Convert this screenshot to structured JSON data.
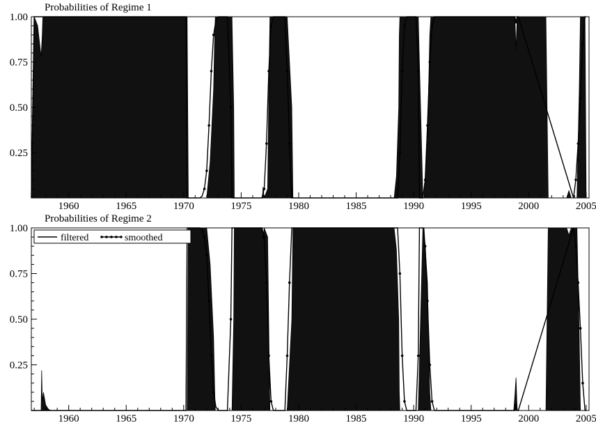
{
  "chart_data": [
    {
      "type": "area",
      "title": "Probabilities of Regime 1",
      "xlabel": "",
      "ylabel": "",
      "xlim": [
        1956.75,
        2005.25
      ],
      "ylim": [
        0,
        1.0
      ],
      "x_ticks": [
        1960,
        1965,
        1970,
        1975,
        1980,
        1985,
        1990,
        1995,
        2000,
        2005
      ],
      "x_tick_labels": [
        "1960",
        "1965",
        "1970",
        "1975",
        "1980",
        "1985",
        "1990",
        "1995",
        "2000",
        "2005"
      ],
      "y_ticks": [
        0.25,
        0.5,
        0.75,
        1.0
      ],
      "y_tick_labels": [
        "0.25",
        "0.50",
        "0.75",
        "1.00"
      ],
      "grid": false,
      "series": [
        {
          "name": "filtered",
          "style": "solid",
          "x": [
            1956.75,
            1957.0,
            1957.3,
            1957.6,
            1957.7,
            1957.75,
            1957.85,
            1958.1,
            1970.3,
            1970.4,
            1972.0,
            1972.3,
            1972.6,
            1972.7,
            1972.75,
            1973.5,
            1973.6,
            1973.8,
            1974.2,
            1974.35,
            1974.4,
            1976.85,
            1976.9,
            1977.0,
            1977.3,
            1977.45,
            1977.5,
            1979.0,
            1979.4,
            1979.5,
            1988.3,
            1988.5,
            1988.7,
            1988.75,
            1988.8,
            1989.5,
            1990.4,
            1990.8,
            1990.9,
            1991.2,
            1991.4,
            1991.5,
            1998.8,
            1998.9,
            1999.0,
            1999.1,
            2001.5,
            2001.7,
            2003.3,
            2003.5,
            2003.7,
            2004.2,
            2004.4,
            2004.5,
            2004.9,
            2005.0
          ],
          "values": [
            0.0,
            1.0,
            0.95,
            0.78,
            0.9,
            1.0,
            1.0,
            1.0,
            1.0,
            0.0,
            0.0,
            0.2,
            0.6,
            0.9,
            1.0,
            1.0,
            1.0,
            1.0,
            1.0,
            0.5,
            0.0,
            0.0,
            0.06,
            0.0,
            0.05,
            0.8,
            1.0,
            1.0,
            0.5,
            0.0,
            0.0,
            0.12,
            0.5,
            0.9,
            1.0,
            1.0,
            1.0,
            0.0,
            0.0,
            0.3,
            0.9,
            1.0,
            1.0,
            0.82,
            1.0,
            1.0,
            1.0,
            0.0,
            0.0,
            0.04,
            0.0,
            0.0,
            0.6,
            1.0,
            1.0,
            0.0
          ]
        },
        {
          "name": "smoothed",
          "style": "solid-dot",
          "x": [
            1956.75,
            1957.0,
            1957.4,
            1957.6,
            1957.8,
            1958.0,
            1970.2,
            1970.3,
            1971.4,
            1971.6,
            1971.8,
            1972.0,
            1972.2,
            1972.4,
            1972.6,
            1972.8,
            1973.0,
            1973.6,
            1973.8,
            1974.1,
            1974.2,
            1976.8,
            1977.0,
            1977.2,
            1977.4,
            1977.6,
            1977.8,
            1978.0,
            1978.8,
            1979.0,
            1979.2,
            1979.4,
            1988.6,
            1988.8,
            1989.0,
            1989.2,
            1989.4,
            1989.6,
            1990.0,
            1990.2,
            1990.4,
            1990.5,
            1990.8,
            1991.0,
            1991.2,
            1991.4,
            1991.6,
            1991.8,
            1992.0,
            1998.8,
            1998.9,
            1999.0,
            1999.1,
            2003.9,
            2004.1,
            2004.3,
            2004.5,
            2004.7,
            2004.9,
            2005.0
          ],
          "values": [
            0.0,
            1.0,
            1.0,
            1.0,
            1.0,
            1.0,
            1.0,
            0.0,
            0.0,
            0.01,
            0.05,
            0.15,
            0.4,
            0.7,
            0.9,
            0.98,
            1.0,
            1.0,
            1.0,
            0.5,
            0.0,
            0.0,
            0.05,
            0.3,
            0.7,
            0.95,
            1.0,
            1.0,
            1.0,
            0.7,
            0.3,
            0.0,
            0.0,
            0.25,
            0.7,
            0.95,
            1.0,
            1.0,
            1.0,
            1.0,
            0.7,
            0.0,
            0.0,
            0.1,
            0.4,
            0.75,
            0.95,
            1.0,
            1.0,
            1.0,
            0.97,
            1.0,
            1.0,
            0.0,
            0.1,
            0.3,
            0.55,
            0.85,
            1.0,
            1.0
          ]
        }
      ],
      "annotations": []
    },
    {
      "type": "area",
      "title": "Probabilities of Regime 2",
      "xlabel": "",
      "ylabel": "",
      "xlim": [
        1956.75,
        2005.25
      ],
      "ylim": [
        0,
        1.0
      ],
      "x_ticks": [
        1960,
        1965,
        1970,
        1975,
        1980,
        1985,
        1990,
        1995,
        2000,
        2005
      ],
      "x_tick_labels": [
        "1960",
        "1965",
        "1970",
        "1975",
        "1980",
        "1985",
        "1990",
        "1995",
        "2000",
        "2005"
      ],
      "y_ticks": [
        0.25,
        0.5,
        0.75,
        1.0
      ],
      "y_tick_labels": [
        "0.25",
        "0.50",
        "0.75",
        "1.00"
      ],
      "grid": false,
      "legend": {
        "placement": "top-left",
        "entries": [
          {
            "label": "filtered",
            "style": "solid"
          },
          {
            "label": "smoothed",
            "style": "solid-dot"
          }
        ]
      },
      "series": [
        {
          "name": "filtered",
          "style": "solid",
          "x": [
            1956.75,
            1957.6,
            1957.65,
            1957.7,
            1957.8,
            1958.0,
            1958.2,
            1958.4,
            1970.3,
            1970.4,
            1972.0,
            1972.3,
            1972.6,
            1972.7,
            1972.75,
            1973.5,
            1973.6,
            1973.8,
            1974.2,
            1974.35,
            1974.4,
            1976.85,
            1976.9,
            1977.0,
            1977.3,
            1977.45,
            1977.5,
            1979.0,
            1979.4,
            1979.5,
            1988.3,
            1988.5,
            1988.7,
            1988.75,
            1988.8,
            1989.5,
            1990.4,
            1990.8,
            1990.9,
            1991.2,
            1991.4,
            1991.5,
            1998.7,
            1998.8,
            1998.9,
            1999.0,
            1999.1,
            2001.5,
            2001.7,
            2003.3,
            2003.5,
            2003.7,
            2004.2,
            2004.4,
            2004.5,
            2004.9,
            2005.0
          ],
          "values": [
            0.0,
            0.0,
            0.22,
            0.05,
            0.1,
            0.03,
            0.01,
            0.0,
            0.0,
            1.0,
            1.0,
            0.8,
            0.4,
            0.1,
            0.0,
            0.0,
            0.0,
            0.0,
            0.0,
            0.5,
            1.0,
            1.0,
            0.94,
            1.0,
            0.95,
            0.2,
            0.0,
            0.0,
            0.5,
            1.0,
            1.0,
            0.88,
            0.5,
            0.1,
            0.0,
            0.0,
            0.0,
            1.0,
            1.0,
            0.7,
            0.1,
            0.0,
            0.0,
            0.08,
            0.18,
            0.0,
            0.0,
            0.0,
            1.0,
            1.0,
            0.96,
            1.0,
            1.0,
            0.4,
            0.0,
            0.0,
            0.0
          ]
        },
        {
          "name": "smoothed",
          "style": "solid-dot",
          "x": [
            1956.75,
            1958.0,
            1970.2,
            1970.3,
            1971.4,
            1971.6,
            1971.8,
            1972.0,
            1972.2,
            1972.4,
            1972.6,
            1972.8,
            1973.0,
            1973.6,
            1973.8,
            1974.1,
            1974.2,
            1976.8,
            1977.0,
            1977.2,
            1977.4,
            1977.6,
            1977.8,
            1978.0,
            1978.8,
            1979.0,
            1979.2,
            1979.4,
            1988.6,
            1988.8,
            1989.0,
            1989.2,
            1989.4,
            1989.6,
            1990.0,
            1990.2,
            1990.4,
            1990.5,
            1990.8,
            1991.0,
            1991.2,
            1991.4,
            1991.6,
            1991.8,
            1992.0,
            1998.8,
            1998.9,
            1999.0,
            1999.1,
            2003.9,
            2004.1,
            2004.3,
            2004.5,
            2004.7,
            2004.9,
            2005.0
          ],
          "values": [
            0.0,
            0.0,
            0.0,
            1.0,
            1.0,
            0.99,
            0.95,
            0.85,
            0.6,
            0.3,
            0.1,
            0.02,
            0.0,
            0.0,
            0.0,
            0.5,
            1.0,
            1.0,
            0.95,
            0.7,
            0.3,
            0.05,
            0.0,
            0.0,
            0.0,
            0.3,
            0.7,
            1.0,
            1.0,
            0.75,
            0.3,
            0.05,
            0.0,
            0.0,
            0.0,
            0.0,
            0.3,
            1.0,
            1.0,
            0.9,
            0.6,
            0.25,
            0.05,
            0.0,
            0.0,
            0.0,
            0.03,
            0.0,
            0.0,
            1.0,
            0.9,
            0.7,
            0.45,
            0.15,
            0.0,
            0.0
          ]
        }
      ],
      "annotations": []
    }
  ]
}
